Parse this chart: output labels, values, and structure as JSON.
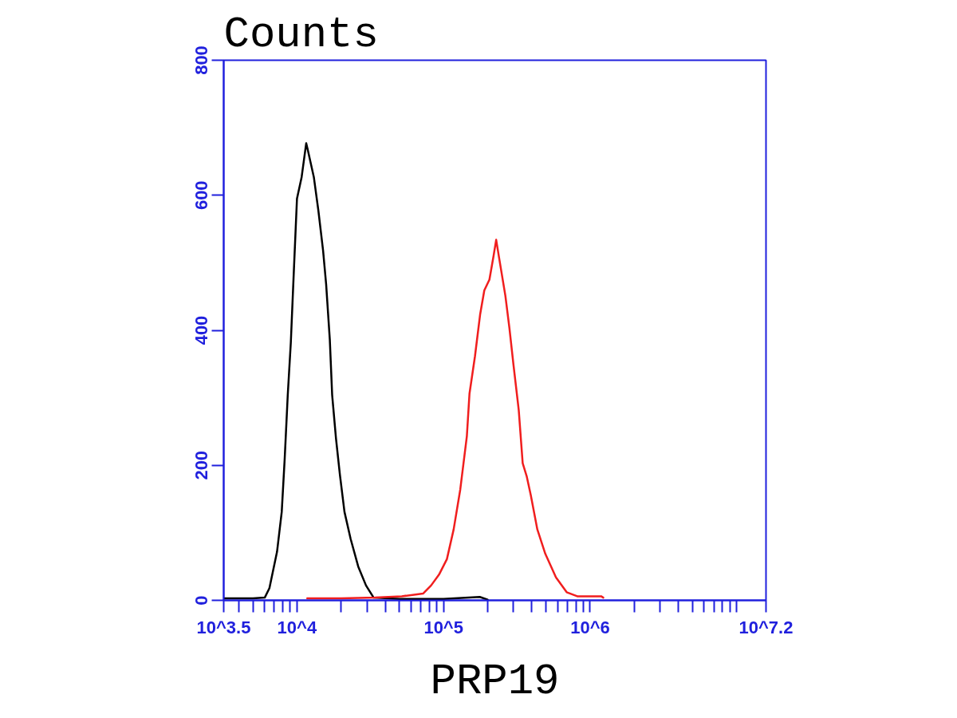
{
  "chart_data": {
    "type": "line",
    "ylabel": "Counts",
    "xlabel": "PRP19",
    "log": "x",
    "line_style": "solid",
    "xlim": [
      3162.28,
      15848932
    ],
    "xticks": [
      {
        "value": 3162.28,
        "label": "10^3.5"
      },
      {
        "value": 4000,
        "label": null
      },
      {
        "value": 5000,
        "label": null
      },
      {
        "value": 6000,
        "label": null
      },
      {
        "value": 7000,
        "label": null
      },
      {
        "value": 8000,
        "label": null
      },
      {
        "value": 9000,
        "label": null
      },
      {
        "value": 10000,
        "label": "10^4"
      },
      {
        "value": 20000,
        "label": null
      },
      {
        "value": 30000,
        "label": null
      },
      {
        "value": 40000,
        "label": null
      },
      {
        "value": 50000,
        "label": null
      },
      {
        "value": 60000,
        "label": null
      },
      {
        "value": 70000,
        "label": null
      },
      {
        "value": 80000,
        "label": null
      },
      {
        "value": 90000,
        "label": null
      },
      {
        "value": 100000,
        "label": "10^5"
      },
      {
        "value": 200000,
        "label": null
      },
      {
        "value": 300000,
        "label": null
      },
      {
        "value": 400000,
        "label": null
      },
      {
        "value": 500000,
        "label": null
      },
      {
        "value": 600000,
        "label": null
      },
      {
        "value": 700000,
        "label": null
      },
      {
        "value": 800000,
        "label": null
      },
      {
        "value": 900000,
        "label": null
      },
      {
        "value": 1000000,
        "label": "10^6"
      },
      {
        "value": 2000000,
        "label": null
      },
      {
        "value": 3000000,
        "label": null
      },
      {
        "value": 4000000,
        "label": null
      },
      {
        "value": 5000000,
        "label": null
      },
      {
        "value": 6000000,
        "label": null
      },
      {
        "value": 7000000,
        "label": null
      },
      {
        "value": 8000000,
        "label": null
      },
      {
        "value": 9000000,
        "label": null
      },
      {
        "value": 10000000,
        "label": null
      },
      {
        "value": 15848932,
        "label": "10^7.2"
      }
    ],
    "ylim": [
      0,
      800
    ],
    "yticks": [
      0,
      200,
      400,
      600,
      800
    ],
    "series": [
      {
        "color": "#000000",
        "x": [
          3170,
          3311,
          5012,
          6026,
          6486,
          7311,
          7870,
          8241,
          8650,
          9078,
          9528,
          10000,
          10760,
          11560,
          11830,
          13030,
          14000,
          15070,
          15810,
          16750,
          17380,
          18450,
          19630,
          21090,
          23230,
          26180,
          29580,
          33340,
          50120,
          100000,
          176600,
          200000
        ],
        "values": [
          3,
          3,
          3,
          4,
          18,
          72,
          131,
          209,
          304,
          382,
          490,
          595,
          627,
          677,
          668,
          627,
          577,
          518,
          468,
          386,
          304,
          240,
          186,
          131,
          91,
          50,
          22,
          4,
          2,
          2,
          5,
          1
        ]
      },
      {
        "color": "#f01e1e",
        "x": [
          11750,
          19950,
          34200,
          51880,
          72440,
          82220,
          93110,
          105400,
          117200,
          130000,
          144200,
          150300,
          163700,
          177800,
          189700,
          205600,
          219300,
          228600,
          238200,
          264200,
          281200,
          299900,
          325800,
          346700,
          369000,
          393600,
          436500,
          494300,
          584800,
          691800,
          816600,
          1189000,
          1230000
        ],
        "values": [
          3,
          3,
          4,
          6,
          10,
          22,
          38,
          61,
          105,
          164,
          243,
          306,
          361,
          424,
          459,
          475,
          510,
          534,
          510,
          451,
          404,
          349,
          282,
          203,
          184,
          156,
          105,
          69,
          34,
          12,
          6,
          6,
          4
        ]
      }
    ]
  }
}
